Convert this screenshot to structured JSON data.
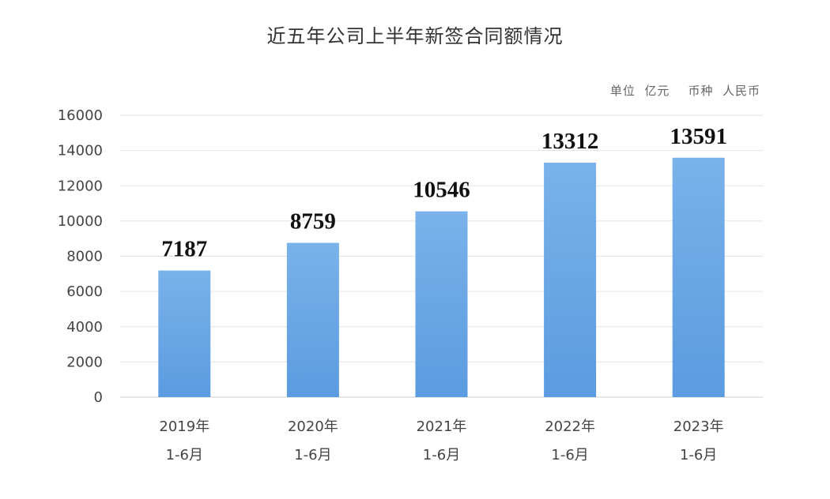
{
  "chart_data": {
    "type": "bar",
    "title": "近五年公司上半年新签合同额情况",
    "unit_note": "单位  亿元    币种  人民币",
    "categories": [
      [
        "2019年",
        "1-6月"
      ],
      [
        "2020年",
        "1-6月"
      ],
      [
        "2021年",
        "1-6月"
      ],
      [
        "2022年",
        "1-6月"
      ],
      [
        "2023年",
        "1-6月"
      ]
    ],
    "values": [
      7187,
      8759,
      10546,
      13312,
      13591
    ],
    "data_labels": [
      "7187",
      "8759",
      "10546",
      "13312",
      "13591"
    ],
    "y_ticks": [
      0,
      2000,
      4000,
      6000,
      8000,
      10000,
      12000,
      14000,
      16000
    ],
    "ylim": [
      0,
      16000
    ],
    "grid": true,
    "bar_color": "#5b9be0",
    "bar_color_light": "#7ab2ea",
    "grid_color": "#e3e3e3"
  }
}
